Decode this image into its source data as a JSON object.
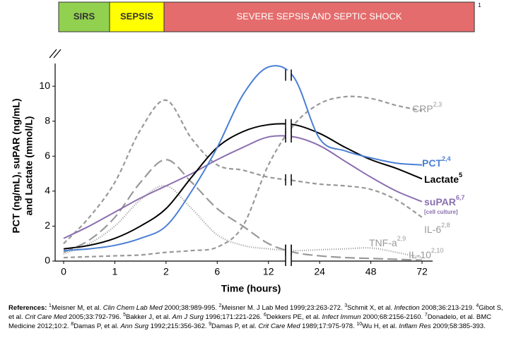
{
  "chart_data": {
    "type": "line",
    "phases": [
      {
        "label": "SIRS",
        "color": "#92d050"
      },
      {
        "label": "SEPSIS",
        "color": "#ffff00"
      },
      {
        "label": "SEVERE SEPSIS AND SEPTIC SHOCK",
        "color": "#e46c6c"
      }
    ],
    "phase_ref": "1",
    "y_label": [
      "PCT (ng/mL), suPAR (ng/mL)",
      "and Lactate (mmol/L)"
    ],
    "x_label": "Time (hours)",
    "categories": [
      "0",
      null,
      "1",
      null,
      "2",
      null,
      "6",
      null,
      "12",
      null,
      "24",
      null,
      "48",
      null,
      "72"
    ],
    "ylim": [
      0,
      11.5
    ],
    "yticks": [
      0,
      2,
      4,
      6,
      8,
      10
    ],
    "series": [
      {
        "name": "PCT",
        "refs": "2,4",
        "color": "#4a7fd4",
        "dash": "none",
        "bold": true,
        "values": [
          0.6,
          0.7,
          0.9,
          1.3,
          2.0,
          4.0,
          6.5,
          9.5,
          11.1,
          10.5,
          7.0,
          6.3,
          5.9,
          5.6,
          5.5
        ]
      },
      {
        "name": "Lactate",
        "refs": "5",
        "color": "#000000",
        "dash": "none",
        "bold": true,
        "values": [
          0.7,
          0.9,
          1.3,
          2.0,
          3.0,
          4.8,
          6.5,
          7.4,
          7.8,
          7.8,
          7.3,
          6.5,
          5.8,
          5.3,
          4.7
        ]
      },
      {
        "name": "suPAR",
        "refs": "6,7",
        "note": "[cell culture]",
        "color": "#8a6fb0",
        "dash": "none",
        "bold": true,
        "values": [
          1.3,
          2.0,
          2.8,
          3.6,
          4.3,
          5.0,
          5.8,
          6.5,
          7.1,
          7.1,
          6.6,
          5.7,
          4.8,
          4.0,
          3.4
        ]
      },
      {
        "name": "CRP",
        "refs": "2,3",
        "color": "#999999",
        "dash": "6,4",
        "bold": false,
        "values": [
          0.2,
          0.25,
          0.3,
          0.35,
          0.5,
          0.6,
          0.8,
          2.0,
          5.5,
          7.8,
          9.0,
          9.4,
          9.3,
          8.9,
          8.6
        ]
      },
      {
        "name": "IL-6",
        "refs": "2,8",
        "color": "#999999",
        "dash": "6,4",
        "bold": false,
        "values": [
          1.0,
          2.5,
          4.5,
          7.5,
          9.2,
          7.0,
          5.5,
          5.2,
          4.8,
          4.6,
          4.4,
          4.3,
          4.1,
          3.5,
          2.5
        ]
      },
      {
        "name": "TNF-a",
        "refs": "2,9",
        "color": "#999999",
        "dash": "1,2",
        "bold": false,
        "values": [
          0.4,
          1.0,
          2.0,
          3.5,
          4.3,
          3.0,
          1.5,
          0.9,
          0.7,
          0.6,
          0.65,
          0.7,
          0.75,
          0.5,
          0.2
        ]
      },
      {
        "name": "IL-10",
        "refs": "2,10",
        "color": "#999999",
        "dash": "14,6",
        "bold": false,
        "values": [
          0.5,
          1.2,
          2.5,
          4.5,
          5.8,
          4.5,
          3.0,
          2.0,
          1.0,
          0.5,
          0.3,
          0.2,
          0.15,
          0.1,
          0.05
        ]
      }
    ]
  },
  "references": {
    "heading": "References: ",
    "items": [
      {
        "n": "1",
        "text": "Meisner M, et al. ",
        "journal": "Clin Chem Lab Med",
        "rest": " 2000;38:989-995. "
      },
      {
        "n": "2",
        "text": "Meisner M. J Lab Med 1999;23:263-272. ",
        "journal": "",
        "rest": ""
      },
      {
        "n": "3",
        "text": "Schmit X, et al. ",
        "journal": "Infection",
        "rest": " 2008;36:213-219. "
      },
      {
        "n": "4",
        "text": "Gibot S, et al. ",
        "journal": "Crit Care Med",
        "rest": " 2005;33:792-796. "
      },
      {
        "n": "5",
        "text": "Bakker J, et al. ",
        "journal": "Am J Surg",
        "rest": " 1996;171:221-226. "
      },
      {
        "n": "6",
        "text": "Dekkers PE, et al. ",
        "journal": "Infect Immun",
        "rest": " 2000;68:2156-2160. "
      },
      {
        "n": "7",
        "text": "Donadelo, et al. BMC Medicine 2012;10:2. ",
        "journal": "",
        "rest": ""
      },
      {
        "n": "8",
        "text": "Damas P, et al. ",
        "journal": "Ann Surg",
        "rest": " 1992;215:356-362. "
      },
      {
        "n": "9",
        "text": "Damas P, et al. ",
        "journal": "Crit Care Med",
        "rest": " 1989;17:975-978. "
      },
      {
        "n": "10",
        "text": "Wu H, et al. ",
        "journal": "Inflam Res",
        "rest": " 2009;58:385-393."
      }
    ]
  }
}
